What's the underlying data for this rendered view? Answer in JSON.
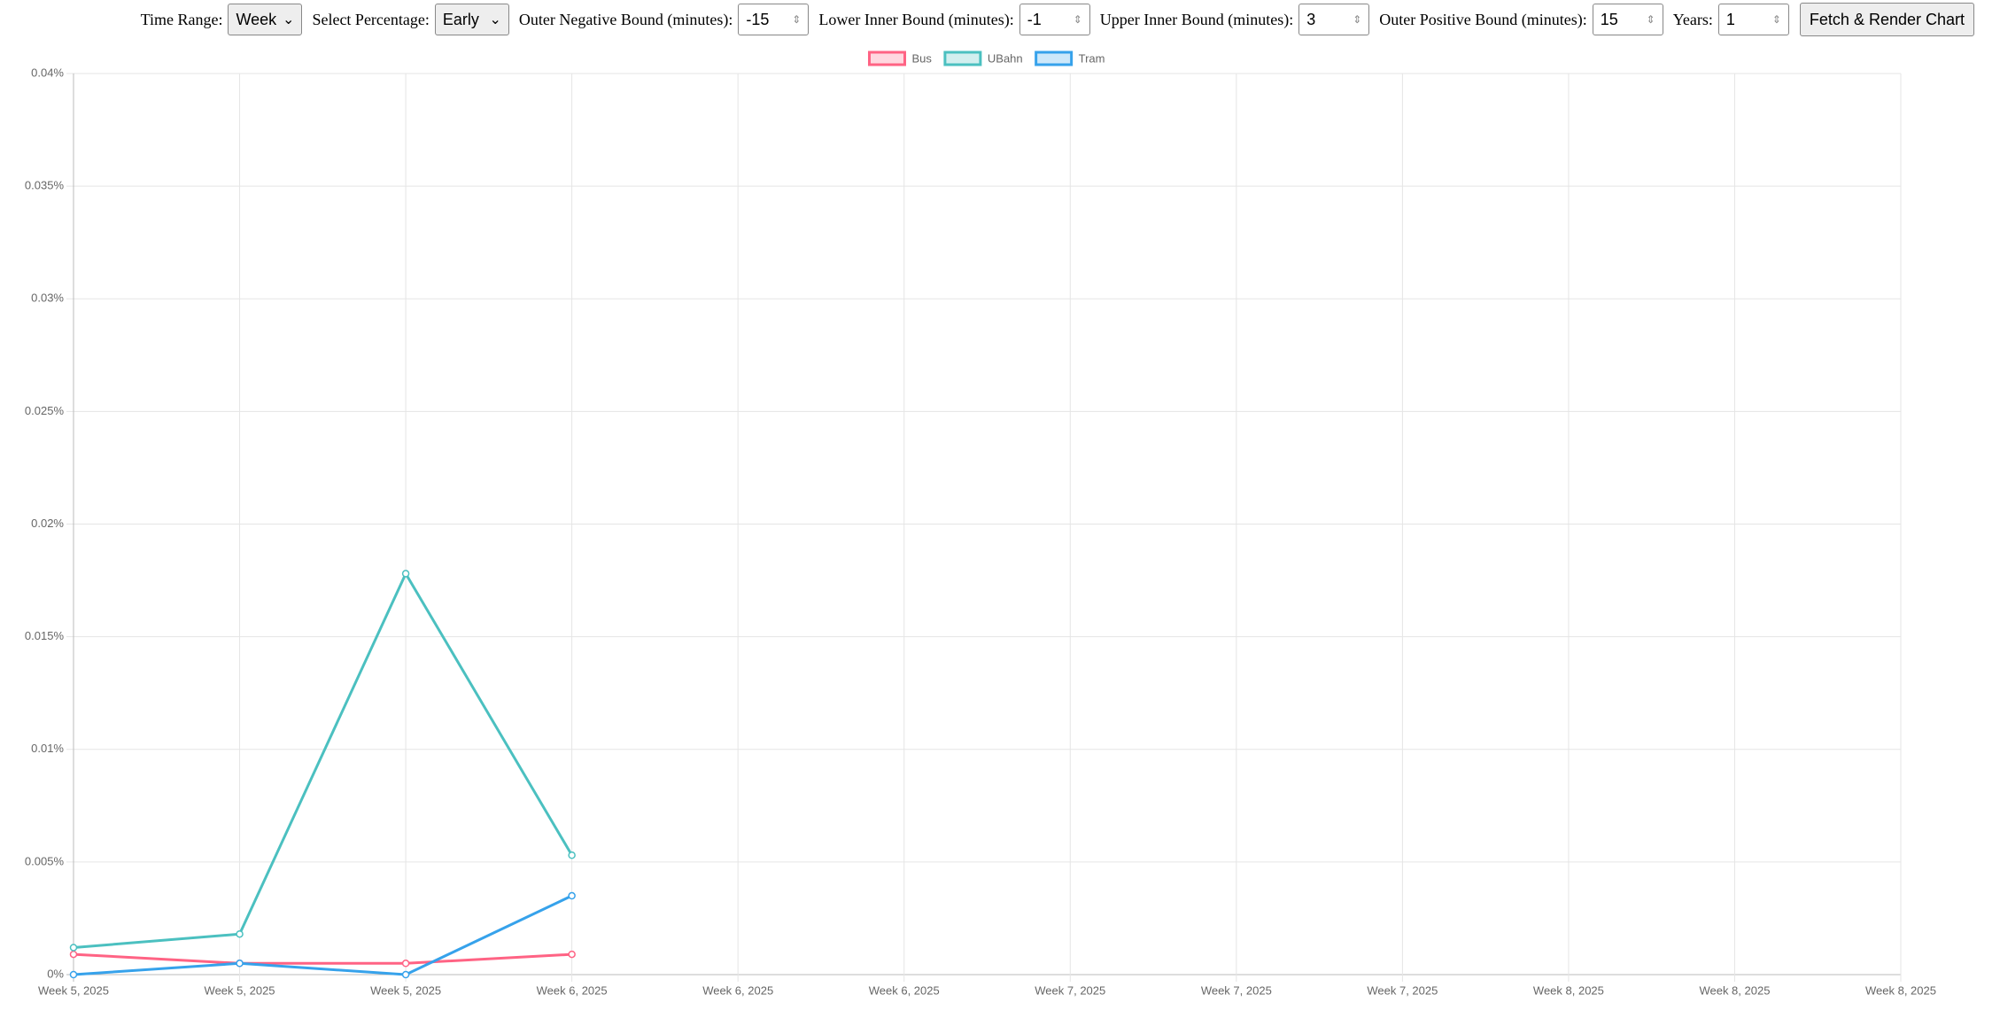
{
  "controls": {
    "time_range": {
      "label": "Time Range:",
      "value": "Week"
    },
    "percentage": {
      "label": "Select Percentage:",
      "value": "Early"
    },
    "outer_negative": {
      "label": "Outer Negative Bound (minutes):",
      "value": "-15"
    },
    "lower_inner": {
      "label": "Lower Inner Bound (minutes):",
      "value": "-1"
    },
    "upper_inner": {
      "label": "Upper Inner Bound (minutes):",
      "value": "3"
    },
    "outer_positive": {
      "label": "Outer Positive Bound (minutes):",
      "value": "15"
    },
    "years": {
      "label": "Years:",
      "value": "1"
    },
    "button": "Fetch & Render Chart"
  },
  "chart_data": {
    "type": "line",
    "categories": [
      "Week 5, 2025",
      "Week 5, 2025",
      "Week 5, 2025",
      "Week 6, 2025",
      "Week 6, 2025",
      "Week 6, 2025",
      "Week 7, 2025",
      "Week 7, 2025",
      "Week 7, 2025",
      "Week 8, 2025",
      "Week 8, 2025",
      "Week 8, 2025"
    ],
    "series": [
      {
        "name": "Bus",
        "color": "#ff6384",
        "values": [
          0.0009,
          0.0005,
          0.0005,
          0.0009,
          null,
          null,
          null,
          null,
          null,
          null,
          null,
          null
        ]
      },
      {
        "name": "UBahn",
        "color": "#4bc0c0",
        "values": [
          0.0012,
          0.0018,
          0.0178,
          0.0053,
          null,
          null,
          null,
          null,
          null,
          null,
          null,
          null
        ]
      },
      {
        "name": "Tram",
        "color": "#36a2eb",
        "values": [
          0,
          0.0005,
          0,
          0.0035,
          null,
          null,
          null,
          null,
          null,
          null,
          null,
          null
        ]
      }
    ],
    "ylim": [
      0,
      0.04
    ],
    "yticks": [
      {
        "value": 0,
        "label": "0%"
      },
      {
        "value": 0.005,
        "label": "0.005%"
      },
      {
        "value": 0.01,
        "label": "0.01%"
      },
      {
        "value": 0.015,
        "label": "0.015%"
      },
      {
        "value": 0.02,
        "label": "0.02%"
      },
      {
        "value": 0.025,
        "label": "0.025%"
      },
      {
        "value": 0.03,
        "label": "0.03%"
      },
      {
        "value": 0.035,
        "label": "0.035%"
      },
      {
        "value": 0.04,
        "label": "0.04%"
      }
    ],
    "grid": true,
    "legend": "top"
  }
}
